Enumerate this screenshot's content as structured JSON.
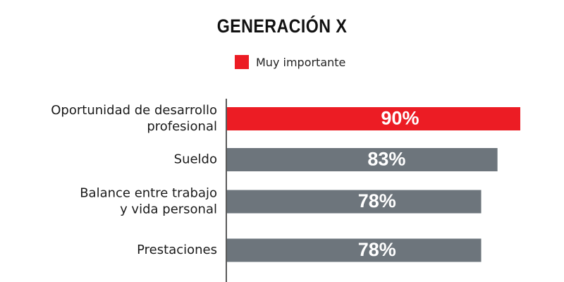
{
  "chart_data": {
    "type": "bar",
    "orientation": "horizontal",
    "title": "GENERACIÓN X",
    "legend": {
      "label": "Muy importante",
      "placement": "top-center"
    },
    "categories": [
      [
        "Oportunidad de desarrollo",
        "profesional"
      ],
      [
        "Sueldo"
      ],
      [
        "Balance entre trabajo",
        "y vida personal"
      ],
      [
        "Prestaciones"
      ]
    ],
    "values": [
      90,
      83,
      78,
      78
    ],
    "value_labels": [
      "90%",
      "83%",
      "78%",
      "78%"
    ],
    "bar_colors": [
      "#ec1c24",
      "#6d757c",
      "#6d757c",
      "#6d757c"
    ],
    "legend_color": "#ec1c24",
    "xlim": [
      0,
      100
    ],
    "grid": false
  }
}
